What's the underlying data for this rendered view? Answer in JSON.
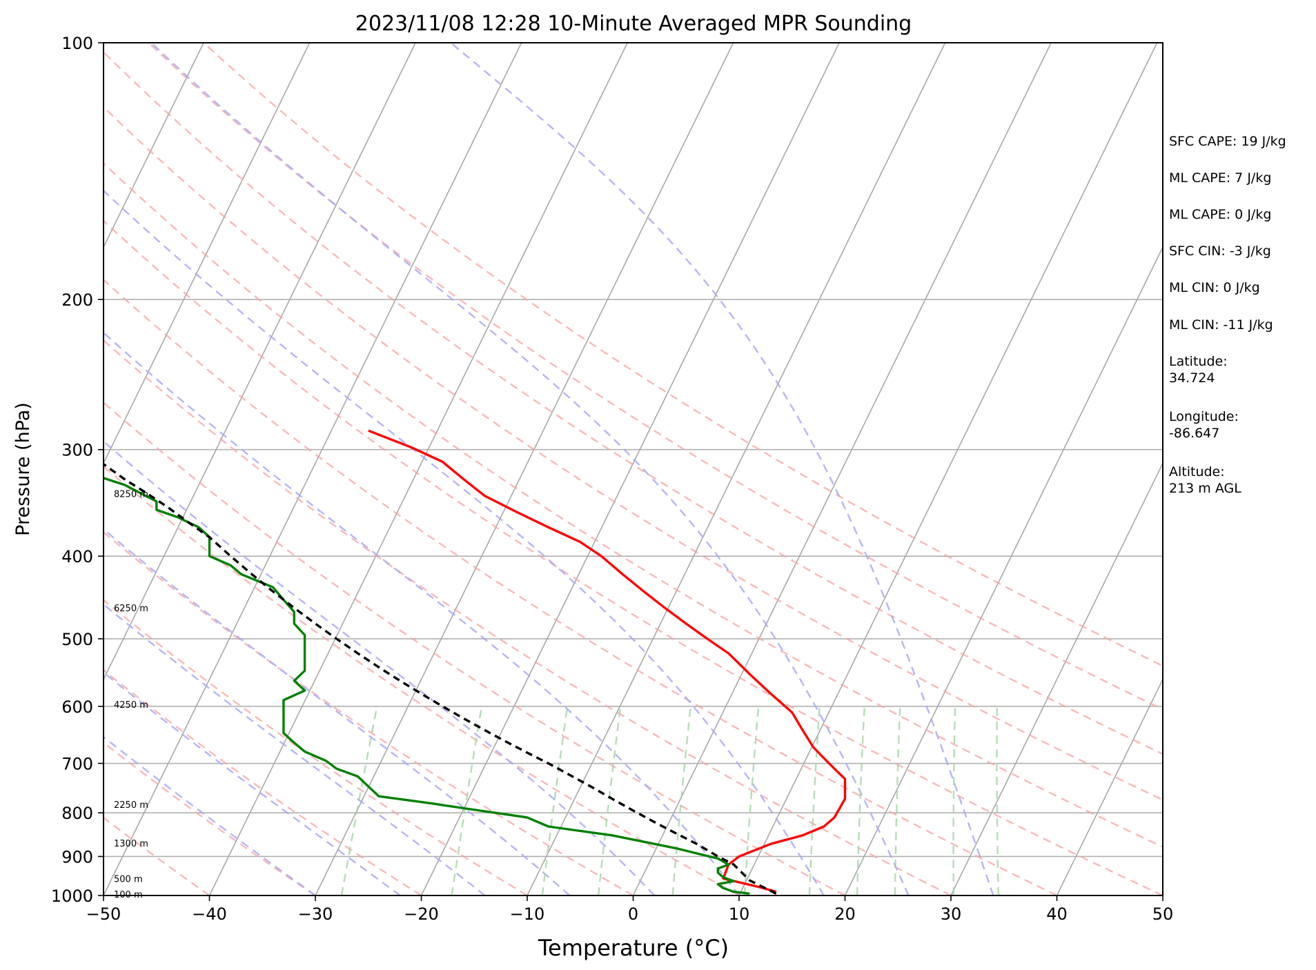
{
  "chart_data": {
    "type": "line",
    "title": "2023/11/08 12:28 10-Minute Averaged MPR Sounding",
    "xlabel": "Temperature (°C)",
    "ylabel": "Pressure (hPa)",
    "xlim": [
      -50,
      50
    ],
    "ylim": [
      1000,
      100
    ],
    "y_scale": "log",
    "skew": "skew-T",
    "grid": true,
    "x_ticks": [
      -50,
      -40,
      -30,
      -20,
      -10,
      0,
      10,
      20,
      30,
      40,
      50
    ],
    "x_tick_labels": [
      "−50",
      "−40",
      "−30",
      "−20",
      "−10",
      "0",
      "10",
      "20",
      "30",
      "40",
      "50"
    ],
    "y_ticks": [
      1000,
      900,
      800,
      700,
      600,
      500,
      400,
      300,
      200,
      100
    ],
    "y_tick_labels": [
      "1000",
      "900",
      "800",
      "700",
      "600",
      "500",
      "400",
      "300",
      "200",
      "100"
    ],
    "height_labels": [
      {
        "p": 996,
        "label": "100 m"
      },
      {
        "p": 955,
        "label": "500 m"
      },
      {
        "p": 868,
        "label": "1300 m"
      },
      {
        "p": 782,
        "label": "2250 m"
      },
      {
        "p": 597,
        "label": "4250 m"
      },
      {
        "p": 460,
        "label": "6250 m"
      },
      {
        "p": 338,
        "label": "8250 m"
      }
    ],
    "series": [
      {
        "color": "#ff0000",
        "x_is_plotted_axis_value": true,
        "points": [
          [
            13.5,
            990
          ],
          [
            12,
            978
          ],
          [
            10,
            965
          ],
          [
            8.5,
            955
          ],
          [
            9,
            920
          ],
          [
            10,
            900
          ],
          [
            13,
            870
          ],
          [
            16,
            850
          ],
          [
            18,
            830
          ],
          [
            19,
            810
          ],
          [
            19.5,
            790
          ],
          [
            20,
            770
          ],
          [
            20,
            745
          ],
          [
            20,
            730
          ],
          [
            19,
            710
          ],
          [
            18,
            690
          ],
          [
            17,
            670
          ],
          [
            16,
            640
          ],
          [
            15,
            610
          ],
          [
            13,
            580
          ],
          [
            11,
            550
          ],
          [
            9,
            520
          ],
          [
            7,
            500
          ],
          [
            5,
            480
          ],
          [
            3,
            460
          ],
          [
            1,
            440
          ],
          [
            -1,
            420
          ],
          [
            -3,
            400
          ],
          [
            -5,
            385
          ],
          [
            -8,
            370
          ],
          [
            -11,
            355
          ],
          [
            -14,
            340
          ],
          [
            -16,
            325
          ],
          [
            -18,
            310
          ],
          [
            -21,
            298
          ],
          [
            -25,
            285
          ]
        ]
      },
      {
        "color": "#008000",
        "x_is_plotted_axis_value": true,
        "points": [
          [
            11,
            995
          ],
          [
            9.5,
            990
          ],
          [
            8.5,
            980
          ],
          [
            8,
            970
          ],
          [
            9.5,
            962
          ],
          [
            8.5,
            952
          ],
          [
            8,
            940
          ],
          [
            8,
            930
          ],
          [
            9,
            920
          ],
          [
            8,
            905
          ],
          [
            4,
            880
          ],
          [
            -2,
            850
          ],
          [
            -8,
            830
          ],
          [
            -10,
            810
          ],
          [
            -13,
            800
          ],
          [
            -16,
            790
          ],
          [
            -19,
            780
          ],
          [
            -24,
            765
          ],
          [
            -25,
            745
          ],
          [
            -26,
            725
          ],
          [
            -28,
            710
          ],
          [
            -29,
            695
          ],
          [
            -31,
            678
          ],
          [
            -32,
            662
          ],
          [
            -33,
            645
          ],
          [
            -33,
            625
          ],
          [
            -33,
            605
          ],
          [
            -33,
            590
          ],
          [
            -31,
            575
          ],
          [
            -32,
            560
          ],
          [
            -31,
            545
          ],
          [
            -31,
            530
          ],
          [
            -31,
            510
          ],
          [
            -31,
            495
          ],
          [
            -32,
            480
          ],
          [
            -32,
            465
          ],
          [
            -33,
            450
          ],
          [
            -34,
            435
          ],
          [
            -37,
            420
          ],
          [
            -38,
            410
          ],
          [
            -40,
            400
          ],
          [
            -40,
            390
          ],
          [
            -40,
            380
          ],
          [
            -41,
            370
          ],
          [
            -43,
            360
          ],
          [
            -45,
            353
          ],
          [
            -45,
            345
          ],
          [
            -46,
            340
          ],
          [
            -48,
            330
          ],
          [
            -52,
            318
          ],
          [
            -62,
            310
          ],
          [
            -72,
            304
          ]
        ]
      },
      {
        "color": "#000000",
        "dashed": true,
        "x_is_plotted_axis_value": true,
        "points": [
          [
            13.5,
            995
          ],
          [
            11,
            960
          ],
          [
            9.5,
            920
          ],
          [
            8,
            900
          ],
          [
            6,
            870
          ],
          [
            4,
            845
          ],
          [
            2,
            820
          ],
          [
            0,
            795
          ],
          [
            -2,
            770
          ],
          [
            -4,
            745
          ],
          [
            -6,
            722
          ],
          [
            -8,
            700
          ],
          [
            -10,
            680
          ],
          [
            -12,
            660
          ],
          [
            -14,
            640
          ],
          [
            -16,
            620
          ],
          [
            -18,
            600
          ],
          [
            -20,
            580
          ],
          [
            -22,
            560
          ],
          [
            -24,
            540
          ],
          [
            -26,
            520
          ],
          [
            -28,
            500
          ],
          [
            -30,
            480
          ],
          [
            -32,
            460
          ],
          [
            -34,
            440
          ],
          [
            -36,
            420
          ],
          [
            -38,
            400
          ],
          [
            -40,
            380
          ],
          [
            -42,
            365
          ],
          [
            -44,
            350
          ],
          [
            -46,
            337
          ],
          [
            -48,
            325
          ],
          [
            -50,
            312
          ],
          [
            -52,
            300
          ],
          [
            -54,
            290
          ],
          [
            -55.5,
            284
          ]
        ]
      }
    ]
  },
  "stats": [
    "SFC CAPE: 19 J/kg",
    "ML CAPE: 7 J/kg",
    "ML CAPE: 0 J/kg",
    "SFC CIN: -3 J/kg",
    "ML CIN: 0 J/kg",
    "ML CIN: -11 J/kg",
    "Latitude:\n34.724",
    "Longitude:\n-86.647",
    "Altitude:\n213 m AGL"
  ],
  "colors": {
    "temperature": "#ff0000",
    "dewpoint": "#008000",
    "parcel": "#000000",
    "dry_adiabats": "#f4a3a3",
    "moist_adiabats": "#a8a8f4",
    "mixing_ratio": "#9fd09f",
    "isotherms": "#a8a8a8"
  }
}
